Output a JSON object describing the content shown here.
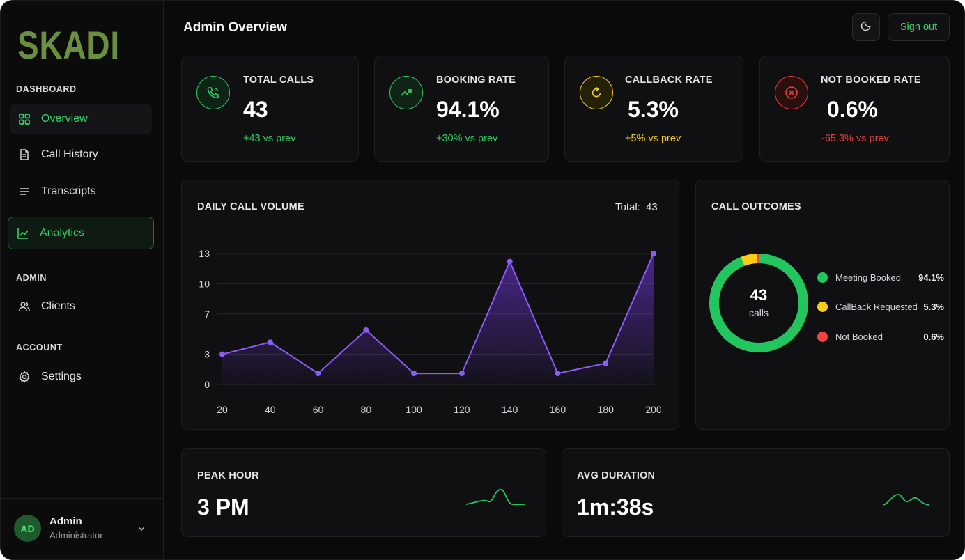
{
  "brand": {
    "logo_text": "SKADI",
    "color": "#6b8f3e"
  },
  "sidebar": {
    "sections": [
      {
        "title": "DASHBOARD"
      },
      {
        "title": "ADMIN"
      },
      {
        "title": "ACCOUNT"
      }
    ],
    "items": [
      {
        "label": "Overview",
        "icon": "grid-icon"
      },
      {
        "label": "Call History",
        "icon": "document-icon"
      },
      {
        "label": "Transcripts",
        "icon": "lines-icon"
      },
      {
        "label": "Analytics",
        "icon": "chart-line-icon"
      },
      {
        "label": "Clients",
        "icon": "users-icon"
      },
      {
        "label": "Settings",
        "icon": "gear-icon"
      }
    ],
    "user": {
      "initials": "AD",
      "name": "Admin",
      "role": "Administrator"
    }
  },
  "header": {
    "title": "Admin Overview",
    "signout_label": "Sign out"
  },
  "stats": [
    {
      "label": "TOTAL CALLS",
      "value": "43",
      "delta": "+43 vs prev",
      "color": "#2fcf61",
      "icon": "phone-icon"
    },
    {
      "label": "BOOKING RATE",
      "value": "94.1%",
      "delta": "+30% vs prev",
      "color": "#2fcf61",
      "icon": "trending-up-icon"
    },
    {
      "label": "CALLBACK RATE",
      "value": "5.3%",
      "delta": "+5% vs prev",
      "color": "#f0cc1c",
      "icon": "refresh-icon"
    },
    {
      "label": "NOT BOOKED RATE",
      "value": "0.6%",
      "delta": "-65.3% vs prev",
      "color": "#e5413a",
      "icon": "x-circle-icon"
    }
  ],
  "daily_volume": {
    "title": "DAILY CALL VOLUME",
    "total_label": "Total:",
    "total_value": "43"
  },
  "outcomes": {
    "title": "CALL OUTCOMES",
    "center_value": "43",
    "center_label": "calls",
    "items": [
      {
        "label": "Meeting Booked",
        "value": "94.1%",
        "color": "#22c55e"
      },
      {
        "label": "CallBack Requested",
        "value": "5.3%",
        "color": "#facc15"
      },
      {
        "label": "Not Booked",
        "value": "0.6%",
        "color": "#ef4444"
      }
    ]
  },
  "peak_hour": {
    "label": "PEAK HOUR",
    "value": "3 PM"
  },
  "avg_duration": {
    "label": "AVG DURATION",
    "value": "1m:38s"
  },
  "chart_data": [
    {
      "type": "area",
      "title": "DAILY CALL VOLUME",
      "x": [
        20,
        40,
        60,
        80,
        100,
        120,
        140,
        160,
        180,
        200
      ],
      "series": [
        {
          "values": [
            3,
            4.2,
            1.1,
            5.4,
            1.1,
            1.1,
            12.2,
            1.1,
            2.1,
            13
          ]
        }
      ],
      "yticks": [
        0,
        3,
        7,
        10,
        13
      ],
      "ylim": [
        0,
        13
      ],
      "xlim": [
        20,
        200
      ],
      "grid": true,
      "color": "#8b5cf6"
    },
    {
      "type": "pie",
      "title": "CALL OUTCOMES",
      "categories": [
        "Meeting Booked",
        "CallBack Requested",
        "Not Booked"
      ],
      "values": [
        94.1,
        5.3,
        0.6
      ],
      "colors": [
        "#22c55e",
        "#facc15",
        "#ef4444"
      ]
    }
  ]
}
